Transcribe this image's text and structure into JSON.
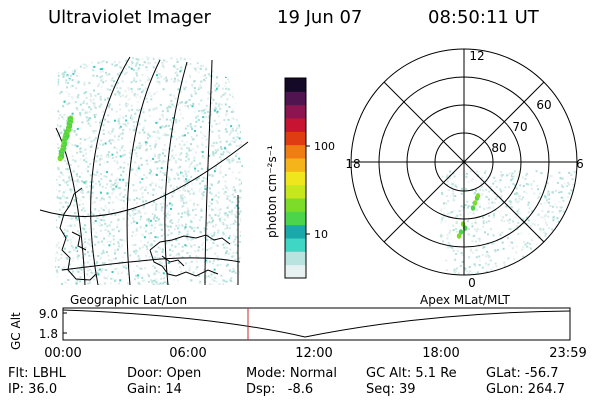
{
  "header": {
    "instrument": "Ultraviolet Imager",
    "date": "19 Jun 07",
    "time": "08:50:11 UT"
  },
  "colorbar": {
    "label": "photon cm⁻²s⁻¹",
    "ticks": [
      "100",
      "10"
    ],
    "scale": "log",
    "colors": [
      "#e8f1f1",
      "#b8e3de",
      "#3fd6c6",
      "#1aa8a8",
      "#4cd54c",
      "#7ddc2a",
      "#c8e61e",
      "#f0e61e",
      "#f5b51a",
      "#f07d14",
      "#e03c14",
      "#c81432",
      "#8c1450",
      "#501450",
      "#140a28"
    ]
  },
  "left_panel": {
    "label": "Geographic Lat/Lon"
  },
  "right_panel": {
    "label": "Apex MLat/MLT",
    "mlt_labels": {
      "top": "12",
      "left": "18",
      "right": "6",
      "bottom": "0"
    },
    "mlat_labels": [
      "60",
      "70",
      "80"
    ]
  },
  "altitude_plot": {
    "ylabel": "GC Alt",
    "yticks": [
      "9.0",
      "1.8"
    ],
    "xticks": [
      "00:00",
      "06:00",
      "12:00",
      "18:00",
      "23:59"
    ],
    "current_time_marker": "08:50",
    "marker_color": "#c82828"
  },
  "status": {
    "filter": "Flt: LBHL",
    "ip": "IP: 36.0",
    "door": "Door: Open",
    "gain": "Gain: 14",
    "mode": "Mode: Normal",
    "dsp": "Dsp:   -8.6",
    "gc_alt": "GC Alt: 5.1 Re",
    "seq": "Seq: 39",
    "glat": "GLat: -56.7",
    "glon": "GLon: 264.7"
  }
}
